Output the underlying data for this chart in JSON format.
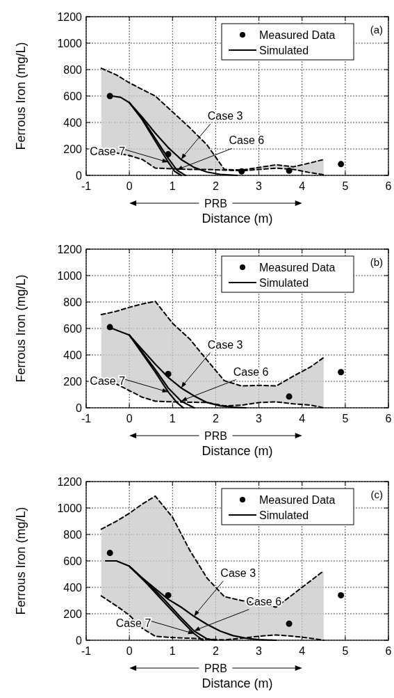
{
  "chart_data": [
    {
      "type": "line",
      "xlabel": "Distance (m)",
      "ylabel": "Ferrous Iron (mg/L)",
      "xlim": [
        -1,
        6
      ],
      "ylim": [
        0,
        1200
      ],
      "xticks": [
        -1,
        0,
        1,
        2,
        3,
        4,
        5,
        6
      ],
      "yticks": [
        0,
        200,
        400,
        600,
        800,
        1000,
        1200
      ],
      "grid": true,
      "legend": "top right",
      "annotations": [
        "(a)",
        "PRB",
        {
          "text": "Case 3",
          "x": 1.2,
          "y": 120
        },
        {
          "text": "Case 6",
          "x": 1.1,
          "y": 40
        },
        {
          "text": "Case 7",
          "x": 0.9,
          "y": 100
        }
      ],
      "series": [
        {
          "color": "#000000",
          "line_style": "dashed",
          "x": [
            -0.65,
            -0.3,
            0,
            0.3,
            0.6,
            1.0,
            1.4,
            1.8,
            2.2,
            2.6,
            3.0,
            3.4,
            3.8,
            4.2,
            4.5
          ],
          "values": [
            810,
            760,
            700,
            650,
            600,
            480,
            360,
            230,
            45,
            40,
            60,
            80,
            65,
            95,
            120
          ]
        },
        {
          "color": "#000000",
          "line_style": "dashed",
          "x": [
            -0.65,
            -0.3,
            0,
            0.3,
            0.6,
            1.0,
            1.4,
            1.8,
            2.2,
            2.6,
            3.0,
            3.4,
            3.8,
            4.2,
            4.5
          ],
          "values": [
            200,
            170,
            150,
            120,
            55,
            50,
            45,
            45,
            40,
            35,
            45,
            55,
            45,
            20,
            5
          ]
        },
        {
          "type": "scatter",
          "name": "Measured Data",
          "color": "#000000",
          "marker": "circle",
          "x": [
            -0.45,
            0.9,
            2.6,
            3.7,
            4.9
          ],
          "values": [
            600,
            160,
            30,
            35,
            85
          ]
        },
        {
          "name": "Simulated",
          "color": "#000000",
          "x": [
            -0.4,
            -0.2,
            0,
            0.3,
            0.6,
            0.9,
            1.2,
            1.5,
            1.8,
            2.1,
            2.5
          ],
          "values": [
            600,
            590,
            550,
            440,
            320,
            210,
            120,
            60,
            25,
            8,
            0
          ]
        },
        {
          "color": "#000000",
          "x": [
            0,
            0.3,
            0.6,
            0.9,
            1.1,
            1.3
          ],
          "values": [
            550,
            430,
            280,
            130,
            40,
            0
          ]
        },
        {
          "color": "#000000",
          "x": [
            0,
            0.3,
            0.6,
            0.9,
            1.05,
            1.2
          ],
          "values": [
            550,
            420,
            260,
            100,
            30,
            0
          ]
        }
      ]
    },
    {
      "type": "line",
      "xlabel": "Distance (m)",
      "ylabel": "Ferrous Iron (mg/L)",
      "xlim": [
        -1,
        6
      ],
      "ylim": [
        0,
        1200
      ],
      "xticks": [
        -1,
        0,
        1,
        2,
        3,
        4,
        5,
        6
      ],
      "yticks": [
        0,
        200,
        400,
        600,
        800,
        1000,
        1200
      ],
      "grid": true,
      "legend": "top right",
      "annotations": [
        "(b)",
        "PRB",
        {
          "text": "Case 3",
          "x": 1.2,
          "y": 150
        },
        {
          "text": "Case 6",
          "x": 1.2,
          "y": 50
        },
        {
          "text": "Case 7",
          "x": 0.9,
          "y": 120
        }
      ],
      "series": [
        {
          "color": "#000000",
          "line_style": "dashed",
          "x": [
            -0.65,
            -0.3,
            0,
            0.3,
            0.6,
            1.0,
            1.4,
            1.8,
            2.2,
            2.6,
            3.0,
            3.4,
            3.8,
            4.2,
            4.5
          ],
          "values": [
            705,
            730,
            760,
            785,
            805,
            640,
            520,
            360,
            205,
            165,
            170,
            165,
            240,
            310,
            380
          ]
        },
        {
          "color": "#000000",
          "line_style": "dashed",
          "x": [
            -0.65,
            -0.3,
            0,
            0.3,
            0.6,
            1.0,
            1.4,
            1.8,
            2.2,
            2.6,
            3.0,
            3.4,
            3.8,
            4.2,
            4.5
          ],
          "values": [
            200,
            180,
            130,
            80,
            50,
            45,
            42,
            40,
            15,
            20,
            40,
            45,
            30,
            20,
            0
          ]
        },
        {
          "type": "scatter",
          "name": "Measured Data",
          "color": "#000000",
          "marker": "circle",
          "x": [
            -0.45,
            0.9,
            3.7,
            4.9
          ],
          "values": [
            610,
            255,
            85,
            270
          ]
        },
        {
          "name": "Simulated",
          "color": "#000000",
          "x": [
            -0.4,
            0,
            0.3,
            0.6,
            0.9,
            1.2,
            1.5,
            1.8,
            2.1,
            2.4,
            2.7
          ],
          "values": [
            600,
            550,
            440,
            330,
            230,
            150,
            90,
            40,
            15,
            5,
            0
          ]
        },
        {
          "color": "#000000",
          "x": [
            0,
            0.3,
            0.6,
            0.9,
            1.2,
            1.5
          ],
          "values": [
            550,
            420,
            290,
            150,
            50,
            0
          ]
        },
        {
          "color": "#000000",
          "x": [
            0,
            0.3,
            0.6,
            0.9,
            1.1,
            1.25
          ],
          "values": [
            550,
            410,
            270,
            120,
            40,
            0
          ]
        }
      ]
    },
    {
      "type": "line",
      "xlabel": "Distance (m)",
      "ylabel": "Ferrous Iron (mg/L)",
      "xlim": [
        -1,
        6
      ],
      "ylim": [
        0,
        1200
      ],
      "xticks": [
        -1,
        0,
        1,
        2,
        3,
        4,
        5,
        6
      ],
      "yticks": [
        0,
        200,
        400,
        600,
        800,
        1000,
        1200
      ],
      "grid": true,
      "legend": "top right",
      "annotations": [
        "(c)",
        "PRB",
        {
          "text": "Case 3",
          "x": 1.5,
          "y": 180
        },
        {
          "text": "Case 6",
          "x": 1.5,
          "y": 70
        },
        {
          "text": "Case 7",
          "x": 1.5,
          "y": 50
        }
      ],
      "series": [
        {
          "color": "#000000",
          "line_style": "dashed",
          "x": [
            -0.65,
            -0.3,
            0,
            0.3,
            0.6,
            1.0,
            1.4,
            1.8,
            2.2,
            2.6,
            3.0,
            3.4,
            3.8,
            4.2,
            4.5
          ],
          "values": [
            840,
            900,
            960,
            1030,
            1090,
            930,
            680,
            470,
            330,
            300,
            280,
            250,
            350,
            450,
            525
          ]
        },
        {
          "color": "#000000",
          "line_style": "dashed",
          "x": [
            -0.65,
            -0.3,
            0,
            0.3,
            0.6,
            1.0,
            1.4,
            1.8,
            2.2,
            2.6,
            3.0,
            3.4,
            3.8,
            4.2,
            4.5
          ],
          "values": [
            335,
            260,
            190,
            90,
            30,
            20,
            15,
            8,
            3,
            15,
            30,
            40,
            30,
            15,
            0
          ]
        },
        {
          "type": "scatter",
          "name": "Measured Data",
          "color": "#000000",
          "marker": "circle",
          "x": [
            -0.45,
            0.9,
            3.7,
            4.9
          ],
          "values": [
            660,
            340,
            125,
            340
          ]
        },
        {
          "name": "Simulated",
          "color": "#000000",
          "x": [
            -0.55,
            -0.3,
            0,
            0.3,
            0.6,
            0.9,
            1.2,
            1.5,
            1.8,
            2.1,
            2.4,
            2.7,
            3.0,
            3.4
          ],
          "values": [
            600,
            600,
            560,
            470,
            390,
            310,
            250,
            180,
            120,
            70,
            35,
            15,
            5,
            0
          ]
        },
        {
          "color": "#000000",
          "x": [
            0,
            0.4,
            0.8,
            1.2,
            1.5,
            1.8,
            2.0
          ],
          "values": [
            560,
            440,
            310,
            170,
            70,
            10,
            0
          ]
        },
        {
          "color": "#000000",
          "x": [
            0,
            0.4,
            0.8,
            1.2,
            1.5,
            1.7
          ],
          "values": [
            560,
            430,
            290,
            150,
            50,
            0
          ]
        }
      ]
    }
  ]
}
